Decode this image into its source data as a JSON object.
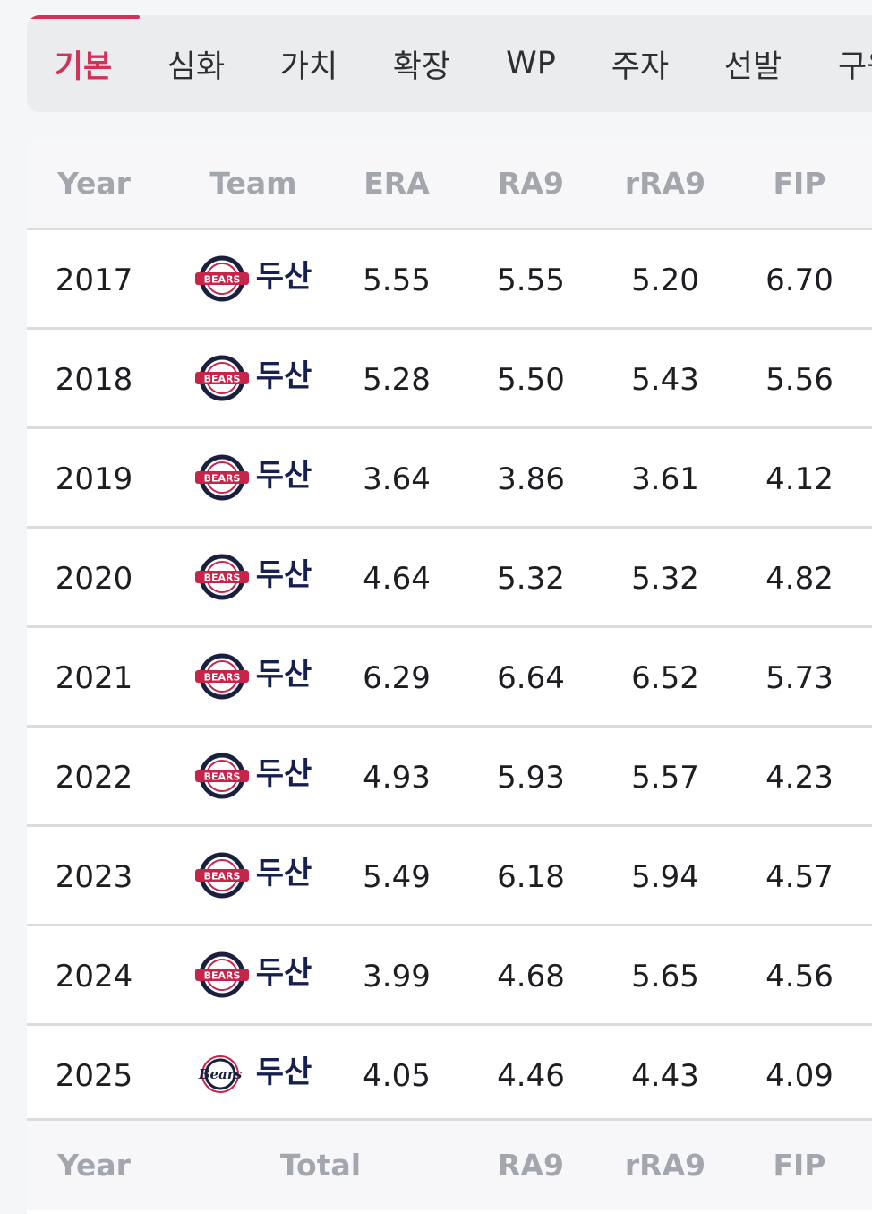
{
  "tabs": [
    "기본",
    "심화",
    "가치",
    "확장",
    "WP",
    "주자",
    "선발",
    "구원"
  ],
  "active_tab": "기본",
  "table": {
    "headers": [
      "Year",
      "Team",
      "ERA",
      "RA9",
      "rRA9",
      "FIP"
    ],
    "rows": [
      {
        "year": "2017",
        "team": "두산",
        "era": "5.55",
        "ra9": "5.55",
        "rra9": "5.20",
        "fip": "6.70",
        "logo": "bears-circle-logo"
      },
      {
        "year": "2018",
        "team": "두산",
        "era": "5.28",
        "ra9": "5.50",
        "rra9": "5.43",
        "fip": "5.56",
        "logo": "bears-circle-logo"
      },
      {
        "year": "2019",
        "team": "두산",
        "era": "3.64",
        "ra9": "3.86",
        "rra9": "3.61",
        "fip": "4.12",
        "logo": "bears-circle-logo"
      },
      {
        "year": "2020",
        "team": "두산",
        "era": "4.64",
        "ra9": "5.32",
        "rra9": "5.32",
        "fip": "4.82",
        "logo": "bears-circle-logo"
      },
      {
        "year": "2021",
        "team": "두산",
        "era": "6.29",
        "ra9": "6.64",
        "rra9": "6.52",
        "fip": "5.73",
        "logo": "bears-circle-logo"
      },
      {
        "year": "2022",
        "team": "두산",
        "era": "4.93",
        "ra9": "5.93",
        "rra9": "5.57",
        "fip": "4.23",
        "logo": "bears-circle-logo"
      },
      {
        "year": "2023",
        "team": "두산",
        "era": "5.49",
        "ra9": "6.18",
        "rra9": "5.94",
        "fip": "4.57",
        "logo": "bears-circle-logo"
      },
      {
        "year": "2024",
        "team": "두산",
        "era": "3.99",
        "ra9": "4.68",
        "rra9": "5.65",
        "fip": "4.56",
        "logo": "bears-circle-logo"
      },
      {
        "year": "2025",
        "team": "두산",
        "era": "4.05",
        "ra9": "4.46",
        "rra9": "4.43",
        "fip": "4.09",
        "logo": "bears-script-logo"
      }
    ],
    "footer": [
      "Year",
      "Total",
      "RA9",
      "rRA9",
      "FIP"
    ]
  },
  "colors": {
    "accent": "#d1325a",
    "team_text": "#15204e",
    "header_text": "#a3a7ad"
  }
}
